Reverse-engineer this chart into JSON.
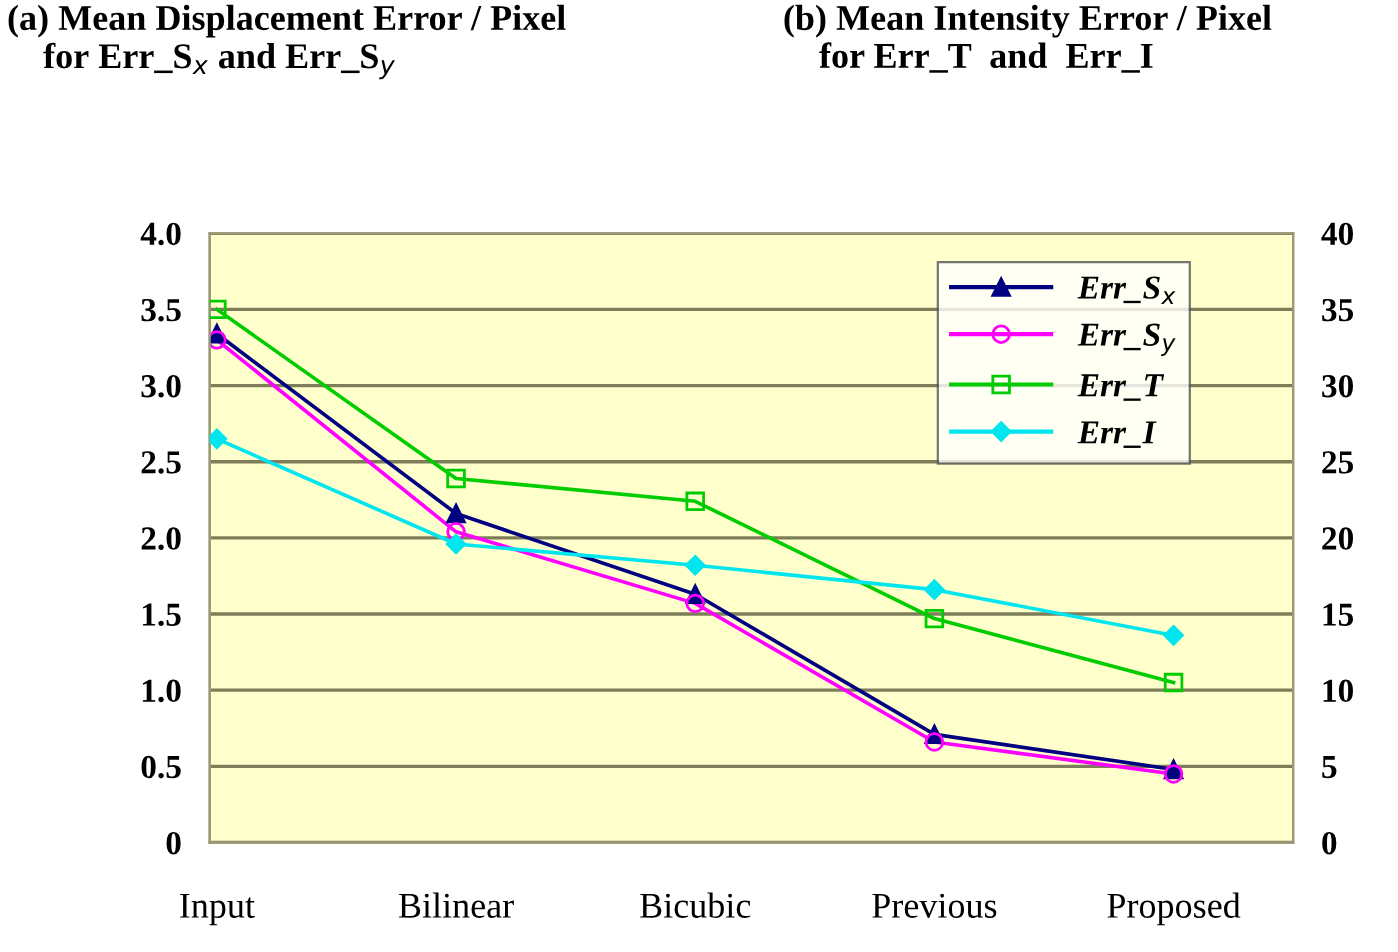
{
  "chart_data": {
    "type": "line",
    "ylabel": "(a) Mean Displacement Error / Pixel\n    for Err_S$_{x}$ and Err_S$_{y}$",
    "y2label": "(b) Mean Intensity Error / Pixel\n    for Err_T  and  Err_I",
    "categories": [
      "Input",
      "Bilinear",
      "Bicubic",
      "Previous",
      "Proposed"
    ],
    "series": [
      {
        "name": "Err_S$_{x}$",
        "color": "#000080",
        "marker": "triangle",
        "values": [
          3.34,
          2.16,
          1.63,
          0.71,
          0.48
        ]
      },
      {
        "name": "Err_S$_{y}$",
        "color": "#ff00ff",
        "marker": "circle",
        "values": [
          3.3,
          2.04,
          1.57,
          0.66,
          0.45
        ]
      },
      {
        "name": "Err_T",
        "color": "#00cc00",
        "marker": "square",
        "axis": "y2",
        "values": [
          35,
          23.9,
          22.4,
          14.7,
          10.5
        ]
      },
      {
        "name": "Err_I",
        "color": "#00e5ee",
        "marker": "diamond",
        "axis": "y2",
        "values": [
          26.5,
          19.6,
          18.2,
          16.6,
          13.6
        ]
      }
    ],
    "ylim": [
      0,
      4
    ],
    "yticks": [
      {
        "value": 0,
        "label": "0"
      },
      {
        "value": 0.5,
        "label": "0.5"
      },
      {
        "value": 1,
        "label": "1.0"
      },
      {
        "value": 1.5,
        "label": "1.5"
      },
      {
        "value": 2,
        "label": "2.0"
      },
      {
        "value": 2.5,
        "label": "2.5"
      },
      {
        "value": 3,
        "label": "3.0"
      },
      {
        "value": 3.5,
        "label": "3.5"
      },
      {
        "value": 4,
        "label": "4.0"
      }
    ],
    "y2lim": [
      0,
      40
    ],
    "y2ticks": [
      0,
      5,
      10,
      15,
      20,
      25,
      30,
      35,
      40
    ],
    "grid": "y",
    "legend": "top right",
    "line_style": "solid"
  }
}
